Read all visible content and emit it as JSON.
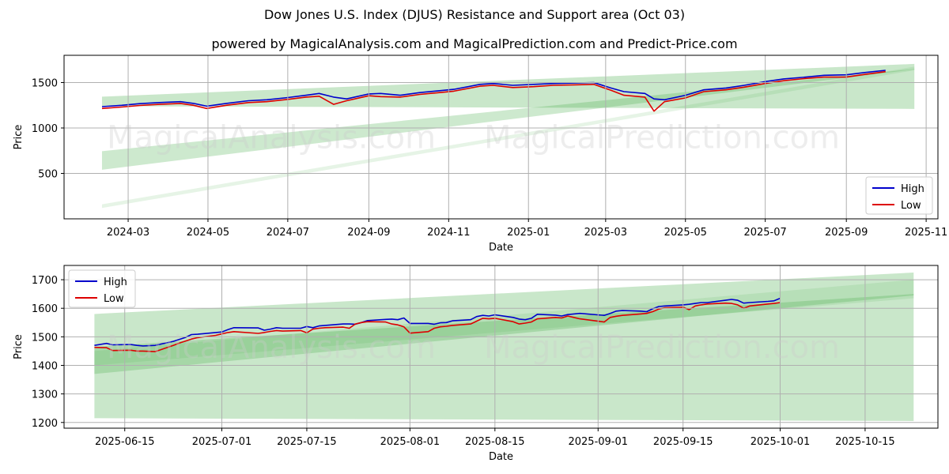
{
  "header": {
    "title": "Dow Jones U.S. Index (DJUS) Resistance and Support area (Oct 03)",
    "subtitle": "powered by MagicalAnalysis.com and MagicalPrediction.com and Predict-Price.com"
  },
  "watermarks": [
    "MagicalAnalysis.com",
    "MagicalPrediction.com"
  ],
  "colors": {
    "high": "#0000cc",
    "low": "#dd0000",
    "band": "#4caf50",
    "grid": "#b0b0b0"
  },
  "chart_data": [
    {
      "type": "line",
      "xlabel": "Date",
      "ylabel": "Price",
      "xlim": [
        "2024-01-12",
        "2025-11-10"
      ],
      "ylim": [
        0,
        1800
      ],
      "yticks": [
        500,
        1000,
        1500
      ],
      "xticks": [
        "2024-03",
        "2024-05",
        "2024-07",
        "2024-09",
        "2024-11",
        "2025-01",
        "2025-03",
        "2025-05",
        "2025-07",
        "2025-09",
        "2025-11"
      ],
      "xticks_dates": [
        "2024-03-01",
        "2024-05-01",
        "2024-07-01",
        "2024-09-01",
        "2024-11-01",
        "2025-01-01",
        "2025-03-01",
        "2025-05-01",
        "2025-07-01",
        "2025-09-01",
        "2025-11-01"
      ],
      "legend": {
        "position": "lower-right",
        "entries": [
          "High",
          "Low"
        ]
      },
      "bands": [
        {
          "x": [
            "2024-02-10",
            "2025-10-23"
          ],
          "lower": [
            1240,
            1210
          ],
          "upper": [
            1345,
            1705
          ]
        },
        {
          "x": [
            "2024-02-10",
            "2025-10-23"
          ],
          "lower": [
            540,
            1645
          ],
          "upper": [
            745,
            1650
          ]
        },
        {
          "x": [
            "2024-02-10",
            "2025-10-23"
          ],
          "lower": [
            120,
            1635
          ],
          "upper": [
            160,
            1675
          ]
        }
      ],
      "series": [
        {
          "name": "High",
          "x": [
            "2024-02-10",
            "2024-02-25",
            "2024-03-10",
            "2024-03-25",
            "2024-04-10",
            "2024-04-20",
            "2024-04-30",
            "2024-05-15",
            "2024-06-01",
            "2024-06-15",
            "2024-07-01",
            "2024-07-15",
            "2024-07-25",
            "2024-08-05",
            "2024-08-15",
            "2024-09-01",
            "2024-09-10",
            "2024-09-25",
            "2024-10-10",
            "2024-10-25",
            "2024-11-05",
            "2024-11-25",
            "2024-12-05",
            "2024-12-20",
            "2025-01-05",
            "2025-01-20",
            "2025-02-05",
            "2025-02-20",
            "2025-03-05",
            "2025-03-15",
            "2025-03-31",
            "2025-04-07",
            "2025-04-15",
            "2025-05-01",
            "2025-05-15",
            "2025-06-01",
            "2025-06-15",
            "2025-07-01",
            "2025-07-15",
            "2025-08-01",
            "2025-08-15",
            "2025-09-01",
            "2025-09-15",
            "2025-10-01"
          ],
          "values": [
            1235,
            1250,
            1268,
            1280,
            1290,
            1270,
            1240,
            1270,
            1300,
            1310,
            1335,
            1360,
            1380,
            1340,
            1320,
            1375,
            1380,
            1360,
            1390,
            1410,
            1425,
            1480,
            1490,
            1470,
            1480,
            1490,
            1495,
            1500,
            1440,
            1400,
            1380,
            1320,
            1310,
            1360,
            1420,
            1440,
            1470,
            1510,
            1540,
            1560,
            1580,
            1585,
            1610,
            1635
          ]
        },
        {
          "name": "Low",
          "x": [
            "2024-02-10",
            "2024-02-25",
            "2024-03-10",
            "2024-03-25",
            "2024-04-10",
            "2024-04-20",
            "2024-04-30",
            "2024-05-15",
            "2024-06-01",
            "2024-06-15",
            "2024-07-01",
            "2024-07-15",
            "2024-07-25",
            "2024-08-05",
            "2024-08-15",
            "2024-09-01",
            "2024-09-10",
            "2024-09-25",
            "2024-10-10",
            "2024-10-25",
            "2024-11-05",
            "2024-11-25",
            "2024-12-05",
            "2024-12-20",
            "2025-01-05",
            "2025-01-20",
            "2025-02-05",
            "2025-02-20",
            "2025-03-05",
            "2025-03-15",
            "2025-03-31",
            "2025-04-07",
            "2025-04-15",
            "2025-05-01",
            "2025-05-15",
            "2025-06-01",
            "2025-06-15",
            "2025-07-01",
            "2025-07-15",
            "2025-08-01",
            "2025-08-15",
            "2025-09-01",
            "2025-09-15",
            "2025-10-01"
          ],
          "values": [
            1215,
            1230,
            1248,
            1260,
            1270,
            1250,
            1215,
            1250,
            1280,
            1290,
            1315,
            1340,
            1350,
            1260,
            1300,
            1355,
            1345,
            1340,
            1370,
            1390,
            1405,
            1460,
            1470,
            1445,
            1455,
            1470,
            1475,
            1480,
            1415,
            1360,
            1340,
            1185,
            1290,
            1330,
            1400,
            1420,
            1450,
            1490,
            1520,
            1545,
            1560,
            1560,
            1590,
            1620
          ]
        }
      ]
    },
    {
      "type": "line",
      "xlabel": "Date",
      "ylabel": "Price",
      "xlim": [
        "2025-06-05",
        "2025-10-27"
      ],
      "ylim": [
        1180,
        1750
      ],
      "yticks": [
        1200,
        1300,
        1400,
        1500,
        1600,
        1700
      ],
      "xticks": [
        "2025-06-15",
        "2025-07-01",
        "2025-07-15",
        "2025-08-01",
        "2025-08-15",
        "2025-09-01",
        "2025-09-15",
        "2025-10-01",
        "2025-10-15"
      ],
      "legend": {
        "position": "top-left",
        "entries": [
          "High",
          "Low"
        ]
      },
      "bands": [
        {
          "x": [
            "2025-06-10",
            "2025-10-23"
          ],
          "lower": [
            1215,
            1205
          ],
          "upper": [
            1580,
            1725
          ]
        },
        {
          "x": [
            "2025-06-10",
            "2025-10-23"
          ],
          "lower": [
            1370,
            1645
          ],
          "upper": [
            1465,
            1650
          ]
        },
        {
          "x": [
            "2025-06-10",
            "2025-10-23"
          ],
          "lower": [
            1400,
            1635
          ],
          "upper": [
            1450,
            1700
          ]
        }
      ],
      "series": [
        {
          "name": "High",
          "x": [
            "2025-06-10",
            "2025-06-12",
            "2025-06-13",
            "2025-06-16",
            "2025-06-17",
            "2025-06-18",
            "2025-06-20",
            "2025-06-23",
            "2025-06-24",
            "2025-06-25",
            "2025-06-26",
            "2025-06-27",
            "2025-06-30",
            "2025-07-01",
            "2025-07-02",
            "2025-07-03",
            "2025-07-07",
            "2025-07-08",
            "2025-07-09",
            "2025-07-10",
            "2025-07-11",
            "2025-07-14",
            "2025-07-15",
            "2025-07-16",
            "2025-07-17",
            "2025-07-18",
            "2025-07-21",
            "2025-07-22",
            "2025-07-23",
            "2025-07-24",
            "2025-07-25",
            "2025-07-28",
            "2025-07-29",
            "2025-07-30",
            "2025-07-31",
            "2025-08-01",
            "2025-08-04",
            "2025-08-05",
            "2025-08-06",
            "2025-08-07",
            "2025-08-08",
            "2025-08-11",
            "2025-08-12",
            "2025-08-13",
            "2025-08-14",
            "2025-08-15",
            "2025-08-18",
            "2025-08-19",
            "2025-08-20",
            "2025-08-21",
            "2025-08-22",
            "2025-08-25",
            "2025-08-26",
            "2025-08-27",
            "2025-08-28",
            "2025-08-29",
            "2025-09-02",
            "2025-09-03",
            "2025-09-04",
            "2025-09-05",
            "2025-09-08",
            "2025-09-09",
            "2025-09-10",
            "2025-09-11",
            "2025-09-12",
            "2025-09-15",
            "2025-09-16",
            "2025-09-17",
            "2025-09-18",
            "2025-09-19",
            "2025-09-22",
            "2025-09-23",
            "2025-09-24",
            "2025-09-25",
            "2025-09-26",
            "2025-09-29",
            "2025-09-30",
            "2025-10-01"
          ],
          "values": [
            1470,
            1477,
            1472,
            1473,
            1470,
            1468,
            1470,
            1484,
            1491,
            1498,
            1508,
            1509,
            1515,
            1517,
            1525,
            1532,
            1531,
            1523,
            1527,
            1532,
            1530,
            1530,
            1536,
            1532,
            1538,
            1540,
            1545,
            1545,
            1544,
            1550,
            1557,
            1561,
            1562,
            1560,
            1566,
            1547,
            1547,
            1544,
            1549,
            1550,
            1556,
            1560,
            1571,
            1575,
            1573,
            1577,
            1568,
            1562,
            1560,
            1565,
            1579,
            1576,
            1573,
            1578,
            1580,
            1582,
            1575,
            1582,
            1590,
            1592,
            1590,
            1588,
            1598,
            1606,
            1608,
            1612,
            1614,
            1617,
            1620,
            1620,
            1628,
            1631,
            1628,
            1618,
            1620,
            1624,
            1626,
            1635
          ]
        },
        {
          "name": "Low",
          "x": [
            "2025-06-10",
            "2025-06-12",
            "2025-06-13",
            "2025-06-16",
            "2025-06-17",
            "2025-06-18",
            "2025-06-20",
            "2025-06-23",
            "2025-06-24",
            "2025-06-25",
            "2025-06-26",
            "2025-06-27",
            "2025-06-30",
            "2025-07-01",
            "2025-07-02",
            "2025-07-03",
            "2025-07-07",
            "2025-07-08",
            "2025-07-09",
            "2025-07-10",
            "2025-07-11",
            "2025-07-14",
            "2025-07-15",
            "2025-07-16",
            "2025-07-17",
            "2025-07-18",
            "2025-07-21",
            "2025-07-22",
            "2025-07-23",
            "2025-07-24",
            "2025-07-25",
            "2025-07-28",
            "2025-07-29",
            "2025-07-30",
            "2025-07-31",
            "2025-08-01",
            "2025-08-04",
            "2025-08-05",
            "2025-08-06",
            "2025-08-07",
            "2025-08-08",
            "2025-08-11",
            "2025-08-12",
            "2025-08-13",
            "2025-08-14",
            "2025-08-15",
            "2025-08-18",
            "2025-08-19",
            "2025-08-20",
            "2025-08-21",
            "2025-08-22",
            "2025-08-25",
            "2025-08-26",
            "2025-08-27",
            "2025-08-28",
            "2025-08-29",
            "2025-09-02",
            "2025-09-03",
            "2025-09-04",
            "2025-09-05",
            "2025-09-08",
            "2025-09-09",
            "2025-09-10",
            "2025-09-11",
            "2025-09-12",
            "2025-09-15",
            "2025-09-16",
            "2025-09-17",
            "2025-09-18",
            "2025-09-19",
            "2025-09-22",
            "2025-09-23",
            "2025-09-24",
            "2025-09-25",
            "2025-09-26",
            "2025-09-29",
            "2025-09-30",
            "2025-10-01"
          ],
          "values": [
            1463,
            1462,
            1452,
            1453,
            1450,
            1450,
            1448,
            1470,
            1478,
            1485,
            1492,
            1497,
            1505,
            1510,
            1515,
            1518,
            1512,
            1515,
            1519,
            1522,
            1520,
            1522,
            1514,
            1527,
            1530,
            1532,
            1534,
            1530,
            1545,
            1550,
            1553,
            1552,
            1545,
            1542,
            1535,
            1513,
            1518,
            1530,
            1535,
            1537,
            1540,
            1545,
            1555,
            1565,
            1563,
            1565,
            1553,
            1545,
            1548,
            1552,
            1563,
            1568,
            1566,
            1573,
            1568,
            1563,
            1552,
            1568,
            1572,
            1575,
            1580,
            1582,
            1588,
            1597,
            1602,
            1604,
            1595,
            1608,
            1612,
            1615,
            1618,
            1617,
            1612,
            1600,
            1608,
            1615,
            1617,
            1620
          ]
        }
      ]
    }
  ]
}
